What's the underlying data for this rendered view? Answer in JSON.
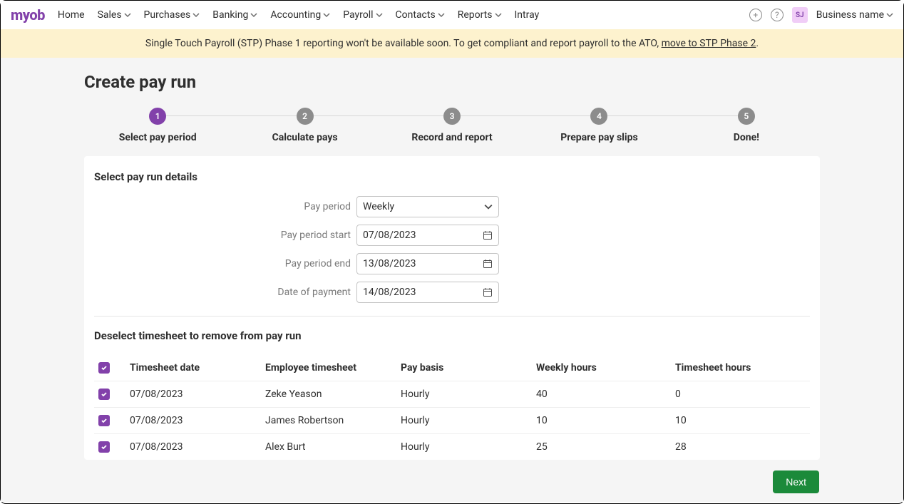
{
  "brand": {
    "logo_text": "myob",
    "logo_color": "#8241aa"
  },
  "nav": {
    "items": [
      {
        "label": "Home",
        "has_dropdown": false
      },
      {
        "label": "Sales",
        "has_dropdown": true
      },
      {
        "label": "Purchases",
        "has_dropdown": true
      },
      {
        "label": "Banking",
        "has_dropdown": true
      },
      {
        "label": "Accounting",
        "has_dropdown": true
      },
      {
        "label": "Payroll",
        "has_dropdown": true
      },
      {
        "label": "Contacts",
        "has_dropdown": true
      },
      {
        "label": "Reports",
        "has_dropdown": true
      },
      {
        "label": "Intray",
        "has_dropdown": false
      }
    ],
    "add_icon_label": "+",
    "help_icon_label": "?",
    "avatar_initials": "SJ",
    "business_name": "Business name"
  },
  "banner": {
    "text_prefix": "Single Touch Payroll (STP) Phase 1 reporting won't be available soon. To get compliant and report payroll to the ATO, ",
    "link_text": "move to STP Phase 2",
    "text_suffix": ".",
    "background_color": "#fdf2ce"
  },
  "page": {
    "title": "Create pay run",
    "stepper": {
      "active_index": 0,
      "active_color": "#8241aa",
      "inactive_color": "#8c8c8c",
      "steps": [
        {
          "num": "1",
          "label": "Select pay period"
        },
        {
          "num": "2",
          "label": "Calculate pays"
        },
        {
          "num": "3",
          "label": "Record and report"
        },
        {
          "num": "4",
          "label": "Prepare pay slips"
        },
        {
          "num": "5",
          "label": "Done!"
        }
      ]
    },
    "details": {
      "section_title": "Select pay run details",
      "fields": {
        "pay_period": {
          "label": "Pay period",
          "value": "Weekly"
        },
        "period_start": {
          "label": "Pay period start",
          "value": "07/08/2023"
        },
        "period_end": {
          "label": "Pay period end",
          "value": "13/08/2023"
        },
        "payment_date": {
          "label": "Date of payment",
          "value": "14/08/2023"
        }
      }
    },
    "timesheet": {
      "section_title": "Deselect timesheet to remove from pay run",
      "columns": [
        "Timesheet date",
        "Employee timesheet",
        "Pay basis",
        "Weekly hours",
        "Timesheet hours"
      ],
      "rows": [
        {
          "checked": true,
          "date": "07/08/2023",
          "employee": "Zeke Yeason",
          "basis": "Hourly",
          "weekly": "40",
          "hours": "0"
        },
        {
          "checked": true,
          "date": "07/08/2023",
          "employee": "James Robertson",
          "basis": "Hourly",
          "weekly": "10",
          "hours": "10"
        },
        {
          "checked": true,
          "date": "07/08/2023",
          "employee": "Alex Burt",
          "basis": "Hourly",
          "weekly": "25",
          "hours": "28"
        }
      ]
    },
    "next_button": {
      "label": "Next",
      "color": "#1b8a3a"
    }
  }
}
